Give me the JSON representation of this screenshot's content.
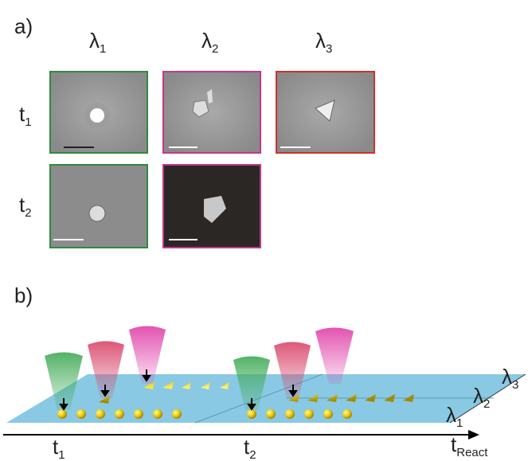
{
  "panel_a": {
    "label": "a)",
    "columns": [
      {
        "symbol": "λ",
        "sub": "1"
      },
      {
        "symbol": "λ",
        "sub": "2"
      },
      {
        "symbol": "λ",
        "sub": "3"
      }
    ],
    "rows": [
      {
        "symbol": "t",
        "sub": "1"
      },
      {
        "symbol": "t",
        "sub": "2"
      }
    ]
  },
  "panel_b": {
    "label": "b)",
    "times": [
      {
        "symbol": "t",
        "sub": "1"
      },
      {
        "symbol": "t",
        "sub": "2"
      }
    ],
    "axis": {
      "symbol": "t",
      "sub": "React"
    },
    "planes": [
      {
        "symbol": "λ",
        "sub": "1"
      },
      {
        "symbol": "λ",
        "sub": "2"
      },
      {
        "symbol": "λ",
        "sub": "3"
      }
    ]
  }
}
